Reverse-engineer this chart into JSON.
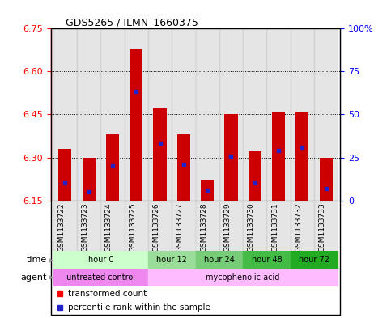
{
  "title": "GDS5265 / ILMN_1660375",
  "samples": [
    "GSM1133722",
    "GSM1133723",
    "GSM1133724",
    "GSM1133725",
    "GSM1133726",
    "GSM1133727",
    "GSM1133728",
    "GSM1133729",
    "GSM1133730",
    "GSM1133731",
    "GSM1133732",
    "GSM1133733"
  ],
  "bar_bottom": 6.15,
  "bar_tops": [
    6.33,
    6.3,
    6.38,
    6.68,
    6.47,
    6.38,
    6.22,
    6.45,
    6.32,
    6.46,
    6.46,
    6.3
  ],
  "percentile_values": [
    6.21,
    6.18,
    6.27,
    6.53,
    6.35,
    6.275,
    6.185,
    6.305,
    6.21,
    6.325,
    6.335,
    6.19
  ],
  "bar_color": "#cc0000",
  "blue_color": "#2222cc",
  "ylim_left": [
    6.15,
    6.75
  ],
  "yticks_left": [
    6.15,
    6.3,
    6.45,
    6.6,
    6.75
  ],
  "yticks_right": [
    0,
    25,
    50,
    75,
    100
  ],
  "right_tick_labels": [
    "0",
    "25",
    "50",
    "75",
    "100%"
  ],
  "time_group_spans": [
    {
      "start": 0,
      "end": 3,
      "color": "#ccffcc",
      "label": "hour 0"
    },
    {
      "start": 4,
      "end": 5,
      "color": "#99dd99",
      "label": "hour 12"
    },
    {
      "start": 6,
      "end": 7,
      "color": "#77cc77",
      "label": "hour 24"
    },
    {
      "start": 8,
      "end": 9,
      "color": "#44bb44",
      "label": "hour 48"
    },
    {
      "start": 10,
      "end": 11,
      "color": "#22aa22",
      "label": "hour 72"
    }
  ],
  "agent_group_spans": [
    {
      "start": 0,
      "end": 3,
      "color": "#ee88ee",
      "label": "untreated control"
    },
    {
      "start": 4,
      "end": 11,
      "color": "#ffbbff",
      "label": "mycophenolic acid"
    }
  ],
  "col_bg_color": "#cccccc",
  "col_bg_alpha": 0.5
}
